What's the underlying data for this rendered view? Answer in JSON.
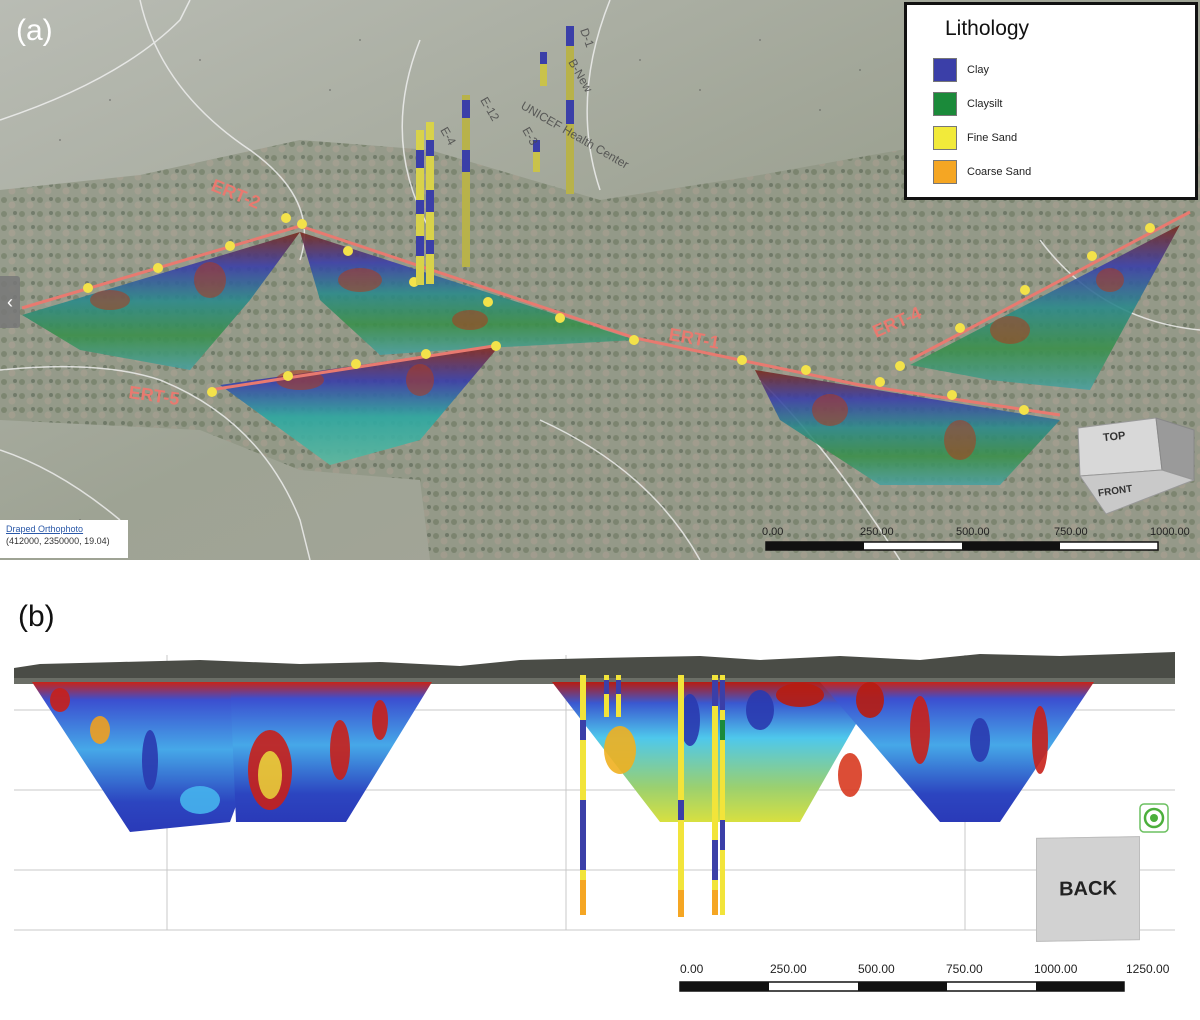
{
  "panel_a": {
    "label": "(a)",
    "legend": {
      "title": "Lithology",
      "items": [
        {
          "label": "Clay",
          "color": "#3b3fa8"
        },
        {
          "label": "Claysilt",
          "color": "#1b8a3a"
        },
        {
          "label": "Fine Sand",
          "color": "#f2ea3a"
        },
        {
          "label": "Coarse Sand",
          "color": "#f5a623"
        }
      ]
    },
    "profile_labels": [
      "ERT-2",
      "ERT-1",
      "ERT-4",
      "ERT-5"
    ],
    "map_labels": [
      "UNICEF Health Center",
      "D-1",
      "B-New",
      "E-12",
      "E-4",
      "E-3"
    ],
    "ortho_link": "Draped Orthophoto",
    "ortho_coords": "(412000, 2350000, 19.04)",
    "view_cube": {
      "top": "TOP",
      "front": "FRONT"
    },
    "scale_ticks": [
      "0.00",
      "250.00",
      "500.00",
      "750.00",
      "1000.00"
    ],
    "nav_arrow": "‹"
  },
  "panel_b": {
    "label": "(b)",
    "back_button": "BACK",
    "scale_ticks": [
      "0.00",
      "250.00",
      "500.00",
      "750.00",
      "1000.00",
      "1250.00"
    ]
  },
  "colors": {
    "clay": "#3b3fa8",
    "fine_sand": "#f2ea3a",
    "coarse_sand": "#f5a623",
    "ert_line": "#e87a70",
    "electrode": "#f3e24a"
  }
}
